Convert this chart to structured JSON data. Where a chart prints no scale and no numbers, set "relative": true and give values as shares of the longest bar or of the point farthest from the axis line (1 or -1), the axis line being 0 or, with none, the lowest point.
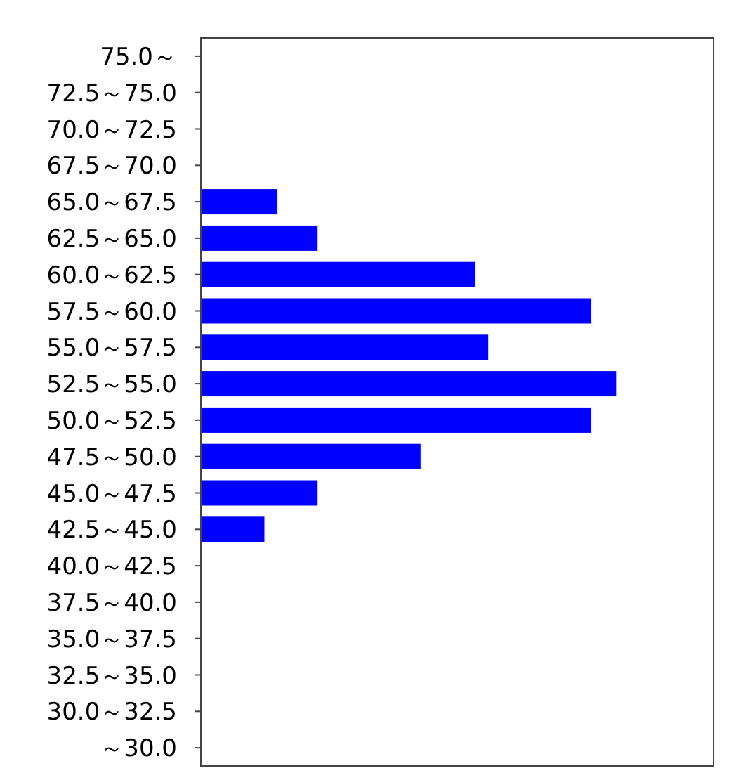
{
  "chart_data": {
    "type": "bar",
    "orientation": "horizontal",
    "relative": true,
    "color": "#0000ff",
    "categories": [
      "75.0～",
      "72.5～75.0",
      "70.0～72.5",
      "67.5～70.0",
      "65.0～67.5",
      "62.5～65.0",
      "60.0～62.5",
      "57.5～60.0",
      "55.0～57.5",
      "52.5～55.0",
      "50.0～52.5",
      "47.5～50.0",
      "45.0～47.5",
      "42.5～45.0",
      "40.0～42.5",
      "37.5～40.0",
      "35.0～37.5",
      "32.5～35.0",
      "30.0～32.5",
      "～30.0"
    ],
    "values": [
      0,
      0,
      0,
      0,
      0.183,
      0.281,
      0.661,
      0.939,
      0.692,
      1,
      0.939,
      0.529,
      0.281,
      0.153,
      0,
      0,
      0,
      0,
      0,
      0
    ]
  }
}
